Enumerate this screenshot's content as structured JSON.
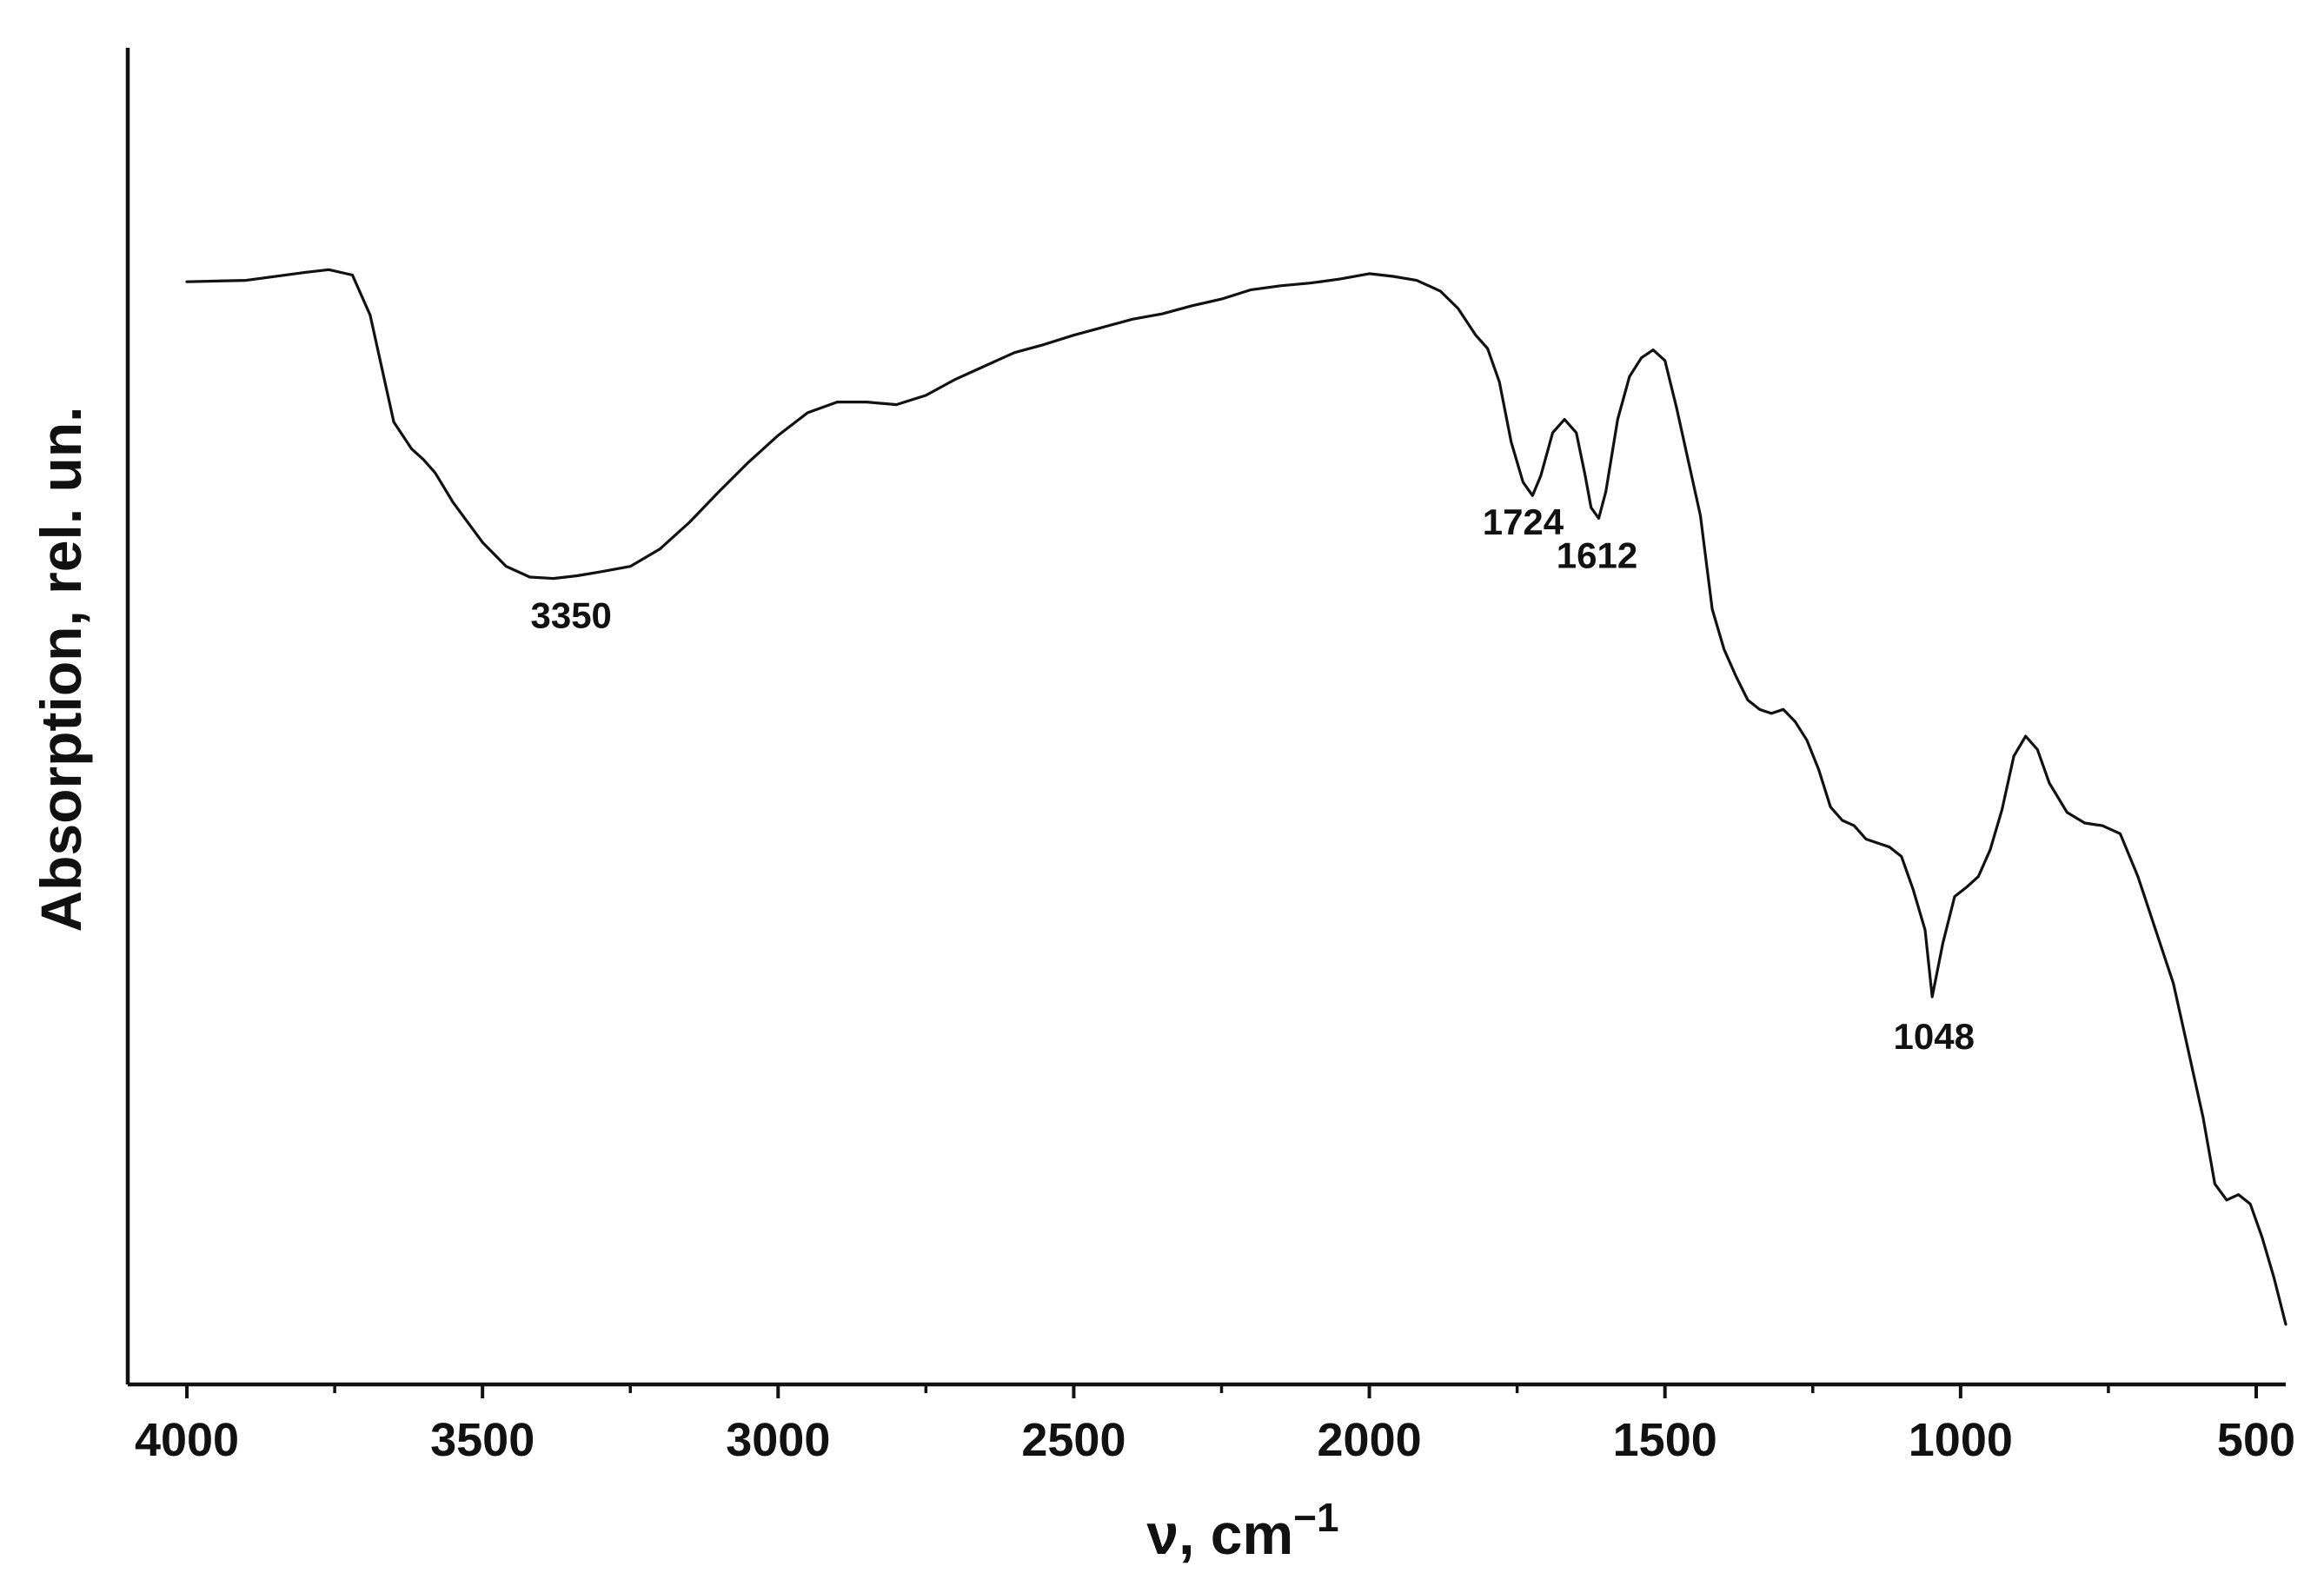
{
  "chart_data": {
    "type": "line",
    "xlabel": "ν, cm",
    "xlabel_sup": "−1",
    "ylabel": "Absorption, rel. un.",
    "xlim": [
      4100,
      450
    ],
    "x_reversed": true,
    "ylim": [
      0,
      1
    ],
    "y_ticks_shown": false,
    "grid": false,
    "x_ticks": [
      "4000",
      "3500",
      "3000",
      "2500",
      "2000",
      "1500",
      "1000",
      "500"
    ],
    "x_tick_values": [
      4000,
      3500,
      3000,
      2500,
      2000,
      1500,
      1000,
      500
    ],
    "x_minor_tick_values": [
      3750,
      3250,
      2750,
      2250,
      1750,
      1250,
      750
    ],
    "annotations": [
      {
        "label": "3350",
        "x": 3350,
        "y": 0.605
      },
      {
        "label": "1724",
        "x": 1740,
        "y": 0.675
      },
      {
        "label": "1612",
        "x": 1615,
        "y": 0.65
      },
      {
        "label": "1048",
        "x": 1045,
        "y": 0.29
      }
    ],
    "series": [
      {
        "color": "#111111",
        "x": [
          4000,
          3900,
          3800,
          3760,
          3720,
          3690,
          3670,
          3650,
          3620,
          3600,
          3580,
          3550,
          3500,
          3460,
          3420,
          3380,
          3340,
          3300,
          3250,
          3200,
          3150,
          3100,
          3050,
          3000,
          2950,
          2900,
          2850,
          2800,
          2750,
          2700,
          2650,
          2600,
          2550,
          2500,
          2450,
          2400,
          2350,
          2300,
          2250,
          2200,
          2150,
          2100,
          2050,
          2000,
          1960,
          1920,
          1880,
          1850,
          1820,
          1800,
          1780,
          1760,
          1740,
          1724,
          1710,
          1690,
          1670,
          1650,
          1635,
          1625,
          1612,
          1600,
          1580,
          1560,
          1540,
          1520,
          1500,
          1480,
          1460,
          1440,
          1420,
          1400,
          1380,
          1360,
          1340,
          1320,
          1300,
          1280,
          1260,
          1240,
          1220,
          1200,
          1180,
          1160,
          1140,
          1120,
          1100,
          1080,
          1060,
          1048,
          1030,
          1010,
          990,
          970,
          950,
          930,
          910,
          890,
          870,
          850,
          820,
          790,
          760,
          730,
          700,
          670,
          640,
          620,
          605,
          590,
          570,
          550,
          530,
          510,
          490,
          470,
          450
        ],
        "y": [
          0.825,
          0.826,
          0.832,
          0.834,
          0.83,
          0.8,
          0.76,
          0.72,
          0.7,
          0.692,
          0.682,
          0.66,
          0.63,
          0.612,
          0.604,
          0.603,
          0.605,
          0.608,
          0.612,
          0.625,
          0.645,
          0.668,
          0.69,
          0.71,
          0.727,
          0.735,
          0.735,
          0.733,
          0.74,
          0.752,
          0.762,
          0.772,
          0.778,
          0.785,
          0.791,
          0.797,
          0.801,
          0.807,
          0.812,
          0.819,
          0.822,
          0.824,
          0.827,
          0.831,
          0.829,
          0.826,
          0.818,
          0.805,
          0.785,
          0.775,
          0.75,
          0.705,
          0.675,
          0.665,
          0.68,
          0.712,
          0.722,
          0.712,
          0.68,
          0.656,
          0.648,
          0.668,
          0.722,
          0.754,
          0.768,
          0.774,
          0.766,
          0.73,
          0.69,
          0.65,
          0.58,
          0.55,
          0.53,
          0.512,
          0.505,
          0.502,
          0.505,
          0.496,
          0.482,
          0.46,
          0.432,
          0.422,
          0.418,
          0.408,
          0.405,
          0.402,
          0.395,
          0.37,
          0.34,
          0.29,
          0.33,
          0.365,
          0.372,
          0.38,
          0.4,
          0.43,
          0.47,
          0.485,
          0.475,
          0.45,
          0.428,
          0.42,
          0.418,
          0.412,
          0.38,
          0.34,
          0.3,
          0.26,
          0.23,
          0.2,
          0.15,
          0.138,
          0.142,
          0.135,
          0.11,
          0.08,
          0.045
        ]
      }
    ]
  }
}
